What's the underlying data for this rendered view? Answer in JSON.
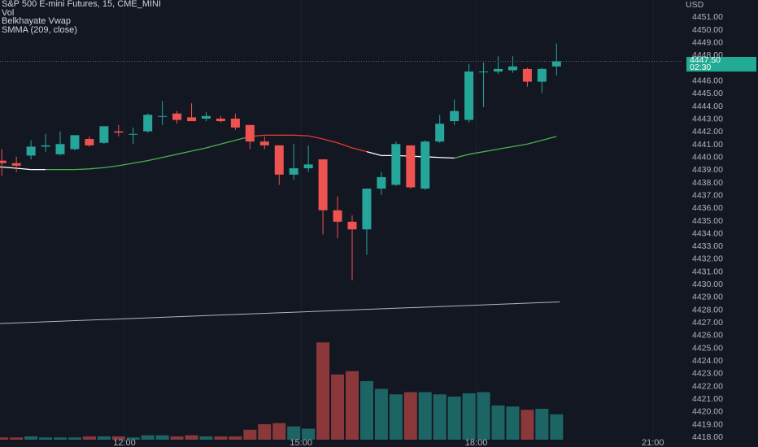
{
  "legend": {
    "symbol": "S&P 500 E-mini Futures, 15, CME_MINI",
    "vol": "Vol",
    "vwap": "Belkhayate Vwap",
    "smma": "SMMA (209, close)"
  },
  "price_axis": {
    "currency": "USD",
    "ticks": [
      "4451.00",
      "4450.00",
      "4449.00",
      "4448.00",
      "4447.00",
      "4446.00",
      "4445.00",
      "4444.00",
      "4443.00",
      "4442.00",
      "4441.00",
      "4440.00",
      "4439.00",
      "4438.00",
      "4437.00",
      "4436.00",
      "4435.00",
      "4434.00",
      "4433.00",
      "4432.00",
      "4431.00",
      "4430.00",
      "4429.00",
      "4428.00",
      "4427.00",
      "4426.00",
      "4425.00",
      "4424.00",
      "4423.00",
      "4422.00",
      "4421.00",
      "4420.00",
      "4419.00",
      "4418.00"
    ]
  },
  "last_price": {
    "price": "4447.50",
    "countdown": "02:30"
  },
  "colors": {
    "up": "#26a69a",
    "down": "#ef5350",
    "vwap_up": "#4caf50",
    "vwap_down": "#e53935",
    "vwap_neutral": "#ffffff",
    "smma": "#b2b5be",
    "background": "#131722",
    "grid": "#1e222d"
  },
  "chart_data": {
    "type": "candlestick",
    "title": "S&P 500 E-mini Futures, 15, CME_MINI",
    "xlabel": "",
    "ylabel": "USD",
    "ylim": [
      4418,
      4452
    ],
    "x_ticks": [
      "12:00",
      "15:00",
      "18:00",
      "21:00"
    ],
    "x_tick_index": [
      8.4,
      20.5,
      32.5,
      44.6
    ],
    "candles": [
      {
        "o": 4439.7,
        "h": 4440.6,
        "l": 4438.5,
        "c": 4439.5
      },
      {
        "o": 4439.5,
        "h": 4440.0,
        "l": 4438.8,
        "c": 4439.3
      },
      {
        "o": 4440.1,
        "h": 4441.3,
        "l": 4439.8,
        "c": 4440.8
      },
      {
        "o": 4440.8,
        "h": 4441.8,
        "l": 4440.4,
        "c": 4440.9
      },
      {
        "o": 4440.2,
        "h": 4442.0,
        "l": 4440.1,
        "c": 4441.0
      },
      {
        "o": 4440.6,
        "h": 4441.7,
        "l": 4440.5,
        "c": 4441.7
      },
      {
        "o": 4441.4,
        "h": 4441.6,
        "l": 4440.8,
        "c": 4440.9
      },
      {
        "o": 4441.1,
        "h": 4442.4,
        "l": 4441.0,
        "c": 4442.4
      },
      {
        "o": 4442.0,
        "h": 4442.5,
        "l": 4441.6,
        "c": 4441.9
      },
      {
        "o": 4441.8,
        "h": 4442.3,
        "l": 4441.0,
        "c": 4441.8
      },
      {
        "o": 4442.0,
        "h": 4443.4,
        "l": 4441.9,
        "c": 4443.3
      },
      {
        "o": 4443.2,
        "h": 4444.4,
        "l": 4442.5,
        "c": 4443.2
      },
      {
        "o": 4443.4,
        "h": 4443.6,
        "l": 4442.6,
        "c": 4442.9
      },
      {
        "o": 4443.1,
        "h": 4444.2,
        "l": 4442.8,
        "c": 4442.8
      },
      {
        "o": 4443.0,
        "h": 4443.5,
        "l": 4442.8,
        "c": 4443.2
      },
      {
        "o": 4443.0,
        "h": 4443.2,
        "l": 4442.7,
        "c": 4442.8
      },
      {
        "o": 4443.0,
        "h": 4443.4,
        "l": 4442.1,
        "c": 4442.3
      },
      {
        "o": 4442.5,
        "h": 4442.5,
        "l": 4440.6,
        "c": 4441.2
      },
      {
        "o": 4441.2,
        "h": 4441.6,
        "l": 4440.6,
        "c": 4440.9
      },
      {
        "o": 4440.9,
        "h": 4440.9,
        "l": 4437.8,
        "c": 4438.6
      },
      {
        "o": 4438.6,
        "h": 4441.0,
        "l": 4438.2,
        "c": 4439.1
      },
      {
        "o": 4439.1,
        "h": 4440.9,
        "l": 4438.8,
        "c": 4439.4
      },
      {
        "o": 4439.8,
        "h": 4439.8,
        "l": 4433.9,
        "c": 4435.8
      },
      {
        "o": 4435.8,
        "h": 4436.9,
        "l": 4433.6,
        "c": 4434.9
      },
      {
        "o": 4434.9,
        "h": 4435.4,
        "l": 4430.3,
        "c": 4434.3
      },
      {
        "o": 4434.3,
        "h": 4437.5,
        "l": 4432.3,
        "c": 4437.5
      },
      {
        "o": 4437.5,
        "h": 4438.8,
        "l": 4437.0,
        "c": 4438.4
      },
      {
        "o": 4437.8,
        "h": 4441.2,
        "l": 4437.7,
        "c": 4441.0
      },
      {
        "o": 4440.9,
        "h": 4440.9,
        "l": 4437.5,
        "c": 4437.6
      },
      {
        "o": 4437.5,
        "h": 4441.3,
        "l": 4437.4,
        "c": 4441.2
      },
      {
        "o": 4441.2,
        "h": 4443.3,
        "l": 4441.1,
        "c": 4442.6
      },
      {
        "o": 4442.8,
        "h": 4444.5,
        "l": 4442.5,
        "c": 4443.6
      },
      {
        "o": 4442.9,
        "h": 4447.3,
        "l": 4442.7,
        "c": 4446.7
      },
      {
        "o": 4446.7,
        "h": 4447.4,
        "l": 4443.9,
        "c": 4446.7
      },
      {
        "o": 4446.7,
        "h": 4447.9,
        "l": 4446.5,
        "c": 4446.9
      },
      {
        "o": 4446.8,
        "h": 4447.9,
        "l": 4446.6,
        "c": 4447.1
      },
      {
        "o": 4446.9,
        "h": 4447.0,
        "l": 4445.5,
        "c": 4445.9
      },
      {
        "o": 4445.9,
        "h": 4447.0,
        "l": 4445.0,
        "c": 4446.9
      },
      {
        "o": 4447.1,
        "h": 4448.9,
        "l": 4446.4,
        "c": 4447.5
      }
    ],
    "volume_max": 100,
    "volume": [
      2,
      2,
      3,
      2,
      2,
      2,
      3,
      3,
      3,
      2,
      4,
      4,
      3,
      4,
      3,
      3,
      3,
      9,
      14,
      15,
      12,
      10,
      88,
      59,
      62,
      53,
      46,
      41,
      43,
      43,
      41,
      39,
      42,
      43,
      31,
      30,
      27,
      28,
      23
    ],
    "vwap": [
      {
        "value": 4439.2,
        "state": "neutral"
      },
      {
        "value": 4439.1,
        "state": "neutral"
      },
      {
        "value": 4439.0,
        "state": "neutral"
      },
      {
        "value": 4439.0,
        "state": "neutral"
      },
      {
        "value": 4439.0,
        "state": "up"
      },
      {
        "value": 4439.0,
        "state": "up"
      },
      {
        "value": 4439.05,
        "state": "up"
      },
      {
        "value": 4439.15,
        "state": "up"
      },
      {
        "value": 4439.3,
        "state": "up"
      },
      {
        "value": 4439.5,
        "state": "up"
      },
      {
        "value": 4439.7,
        "state": "up"
      },
      {
        "value": 4439.95,
        "state": "up"
      },
      {
        "value": 4440.2,
        "state": "up"
      },
      {
        "value": 4440.45,
        "state": "up"
      },
      {
        "value": 4440.7,
        "state": "up"
      },
      {
        "value": 4441.0,
        "state": "up"
      },
      {
        "value": 4441.3,
        "state": "up"
      },
      {
        "value": 4441.6,
        "state": "up"
      },
      {
        "value": 4441.7,
        "state": "down"
      },
      {
        "value": 4441.7,
        "state": "down"
      },
      {
        "value": 4441.7,
        "state": "down"
      },
      {
        "value": 4441.65,
        "state": "down"
      },
      {
        "value": 4441.4,
        "state": "down"
      },
      {
        "value": 4441.1,
        "state": "down"
      },
      {
        "value": 4440.7,
        "state": "down"
      },
      {
        "value": 4440.4,
        "state": "down"
      },
      {
        "value": 4440.1,
        "state": "neutral"
      },
      {
        "value": 4440.1,
        "state": "neutral"
      },
      {
        "value": 4440.05,
        "state": "neutral"
      },
      {
        "value": 4440.0,
        "state": "neutral"
      },
      {
        "value": 4439.95,
        "state": "neutral"
      },
      {
        "value": 4439.9,
        "state": "neutral"
      },
      {
        "value": 4440.2,
        "state": "up"
      },
      {
        "value": 4440.4,
        "state": "up"
      },
      {
        "value": 4440.6,
        "state": "up"
      },
      {
        "value": 4440.8,
        "state": "up"
      },
      {
        "value": 4441.0,
        "state": "up"
      },
      {
        "value": 4441.3,
        "state": "up"
      },
      {
        "value": 4441.6,
        "state": "up"
      }
    ],
    "smma_start": 4426.9,
    "smma_end": 4428.6
  }
}
